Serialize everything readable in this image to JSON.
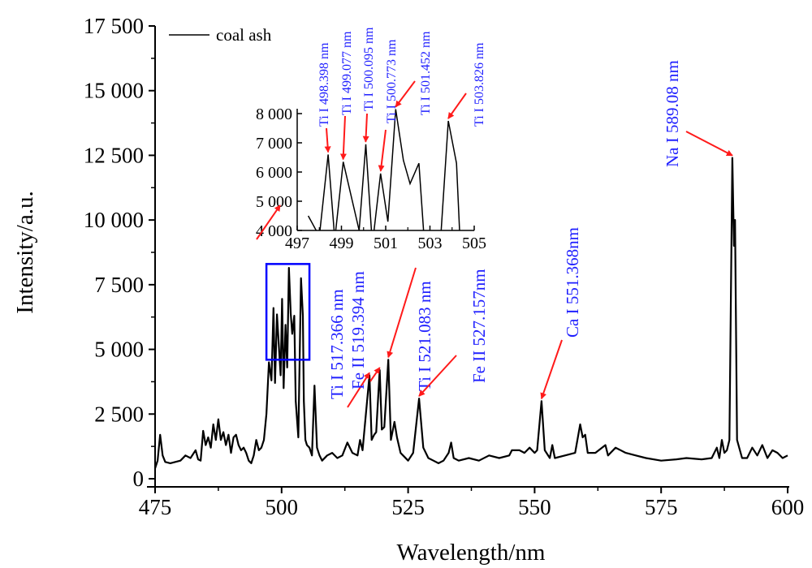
{
  "chart_data": {
    "type": "line",
    "xlabel": "Wavelength/nm",
    "ylabel": "Intensity/a.u.",
    "xlim": [
      475,
      600
    ],
    "ylim": [
      0,
      17500
    ],
    "xticks": [
      "475",
      "500",
      "525",
      "550",
      "575",
      "600"
    ],
    "yticks": [
      "0",
      "2 500",
      "5 000",
      "7 500",
      "10 000",
      "12 500",
      "15 000",
      "17 500"
    ],
    "legend": {
      "position": "top-left",
      "entries": [
        "coal ash"
      ]
    },
    "series": [
      {
        "name": "coal ash",
        "color": "#000000",
        "points": [
          [
            475,
            400
          ],
          [
            475.5,
            700
          ],
          [
            476,
            1700
          ],
          [
            476.5,
            900
          ],
          [
            477,
            650
          ],
          [
            478,
            600
          ],
          [
            479,
            650
          ],
          [
            480,
            700
          ],
          [
            481,
            900
          ],
          [
            482,
            800
          ],
          [
            483,
            1100
          ],
          [
            483.5,
            750
          ],
          [
            484,
            700
          ],
          [
            484.5,
            1850
          ],
          [
            485,
            1300
          ],
          [
            485.5,
            1600
          ],
          [
            486,
            1200
          ],
          [
            486.5,
            2100
          ],
          [
            487,
            1500
          ],
          [
            487.5,
            2300
          ],
          [
            488,
            1500
          ],
          [
            488.5,
            1800
          ],
          [
            489,
            1300
          ],
          [
            489.5,
            1700
          ],
          [
            490,
            1000
          ],
          [
            490.5,
            1600
          ],
          [
            491,
            1700
          ],
          [
            491.5,
            1300
          ],
          [
            492,
            1100
          ],
          [
            492.5,
            1200
          ],
          [
            493,
            1000
          ],
          [
            493.5,
            700
          ],
          [
            494,
            600
          ],
          [
            494.5,
            900
          ],
          [
            495,
            1500
          ],
          [
            495.5,
            1100
          ],
          [
            496,
            1200
          ],
          [
            496.5,
            1500
          ],
          [
            497,
            2500
          ],
          [
            497.5,
            4500
          ],
          [
            498,
            3800
          ],
          [
            498.2,
            5200
          ],
          [
            498.4,
            6600
          ],
          [
            498.7,
            3700
          ],
          [
            499.08,
            6350
          ],
          [
            499.8,
            4000
          ],
          [
            500.1,
            6950
          ],
          [
            500.4,
            3500
          ],
          [
            500.77,
            5950
          ],
          [
            501.1,
            4300
          ],
          [
            501.45,
            8150
          ],
          [
            501.8,
            6400
          ],
          [
            502.1,
            5600
          ],
          [
            502.5,
            6300
          ],
          [
            502.8,
            3000
          ],
          [
            503.3,
            1600
          ],
          [
            503.83,
            7750
          ],
          [
            504.2,
            6300
          ],
          [
            504.4,
            3000
          ],
          [
            504.7,
            1500
          ],
          [
            505,
            1300
          ],
          [
            505.5,
            1200
          ],
          [
            506,
            900
          ],
          [
            506.5,
            3600
          ],
          [
            507,
            1200
          ],
          [
            507.5,
            900
          ],
          [
            508,
            700
          ],
          [
            509,
            900
          ],
          [
            510,
            1000
          ],
          [
            511,
            800
          ],
          [
            512,
            900
          ],
          [
            513,
            1400
          ],
          [
            514,
            1000
          ],
          [
            515,
            900
          ],
          [
            515.5,
            1500
          ],
          [
            516,
            1100
          ],
          [
            517.37,
            4000
          ],
          [
            517.8,
            1500
          ],
          [
            518.3,
            1700
          ],
          [
            518.7,
            1800
          ],
          [
            519.39,
            4200
          ],
          [
            519.8,
            1900
          ],
          [
            520.3,
            2000
          ],
          [
            521.08,
            4600
          ],
          [
            521.6,
            1500
          ],
          [
            522.3,
            2200
          ],
          [
            522.8,
            1600
          ],
          [
            523.5,
            1000
          ],
          [
            524,
            900
          ],
          [
            525,
            700
          ],
          [
            526,
            1000
          ],
          [
            527.16,
            3100
          ],
          [
            528,
            1200
          ],
          [
            529,
            800
          ],
          [
            530,
            700
          ],
          [
            531,
            600
          ],
          [
            532,
            700
          ],
          [
            533,
            1000
          ],
          [
            533.5,
            1400
          ],
          [
            534,
            800
          ],
          [
            535,
            700
          ],
          [
            537,
            800
          ],
          [
            539,
            700
          ],
          [
            541,
            900
          ],
          [
            543,
            800
          ],
          [
            545,
            900
          ],
          [
            545.5,
            1100
          ],
          [
            547,
            1100
          ],
          [
            548,
            1000
          ],
          [
            549,
            1200
          ],
          [
            550,
            1000
          ],
          [
            550.5,
            1100
          ],
          [
            551.37,
            3000
          ],
          [
            552,
            1100
          ],
          [
            553,
            800
          ],
          [
            553.5,
            1300
          ],
          [
            554,
            800
          ],
          [
            556,
            900
          ],
          [
            558,
            1000
          ],
          [
            559,
            2100
          ],
          [
            559.5,
            1600
          ],
          [
            560,
            1700
          ],
          [
            560.5,
            1000
          ],
          [
            562,
            1000
          ],
          [
            564,
            1300
          ],
          [
            564.5,
            900
          ],
          [
            566,
            1200
          ],
          [
            568,
            1000
          ],
          [
            570,
            900
          ],
          [
            572,
            800
          ],
          [
            575,
            700
          ],
          [
            578,
            750
          ],
          [
            580,
            800
          ],
          [
            583,
            750
          ],
          [
            585,
            800
          ],
          [
            586,
            1200
          ],
          [
            586.5,
            800
          ],
          [
            587,
            1500
          ],
          [
            587.5,
            1000
          ],
          [
            588,
            1100
          ],
          [
            588.5,
            1500
          ],
          [
            589.08,
            12400
          ],
          [
            589.4,
            9000
          ],
          [
            589.6,
            10000
          ],
          [
            590,
            1500
          ],
          [
            591,
            800
          ],
          [
            592,
            800
          ],
          [
            593,
            1200
          ],
          [
            594,
            900
          ],
          [
            595,
            1300
          ],
          [
            596,
            800
          ],
          [
            597,
            1100
          ],
          [
            598,
            1000
          ],
          [
            599,
            800
          ],
          [
            600,
            900
          ]
        ]
      }
    ],
    "highlight_box": {
      "x": [
        497,
        505.5
      ],
      "y": [
        4600,
        8300
      ],
      "color": "#0000ff"
    },
    "annotations": [
      {
        "text": "Ti I  517.366 nm",
        "x": 517.366,
        "y": 4000
      },
      {
        "text": "Fe II  519.394 nm",
        "x": 519.394,
        "y": 4200
      },
      {
        "text": "Ti I  521.083 nm",
        "x": 521.083,
        "y": 4600
      },
      {
        "text": "Fe II  527.157nm",
        "x": 527.157,
        "y": 3100
      },
      {
        "text": "Ca I  551.368nm",
        "x": 551.368,
        "y": 3000
      },
      {
        "text": "Na I  589.08 nm",
        "x": 589.08,
        "y": 12400
      }
    ],
    "annotation_color": "#1f1fff",
    "arrow_color": "#ff1a1a",
    "inset": {
      "xlim": [
        497,
        505
      ],
      "ylim": [
        4000,
        8000
      ],
      "xticks": [
        "497",
        "499",
        "501",
        "503",
        "505"
      ],
      "yticks": [
        "4 000",
        "5 000",
        "6 000",
        "7 000",
        "8 000"
      ],
      "annotations": [
        {
          "text": "Ti I 498.398 nm",
          "x": 498.398,
          "y": 6600
        },
        {
          "text": "Ti I  499.077 nm",
          "x": 499.077,
          "y": 6350
        },
        {
          "text": "Ti I  500.095 nm",
          "x": 500.095,
          "y": 6950
        },
        {
          "text": "Ti I  500.773 nm",
          "x": 500.773,
          "y": 5950
        },
        {
          "text": "Ti I  501.452 nm",
          "x": 501.452,
          "y": 8150
        },
        {
          "text": "Ti I  503.826 nm",
          "x": 503.826,
          "y": 7750
        }
      ]
    }
  }
}
